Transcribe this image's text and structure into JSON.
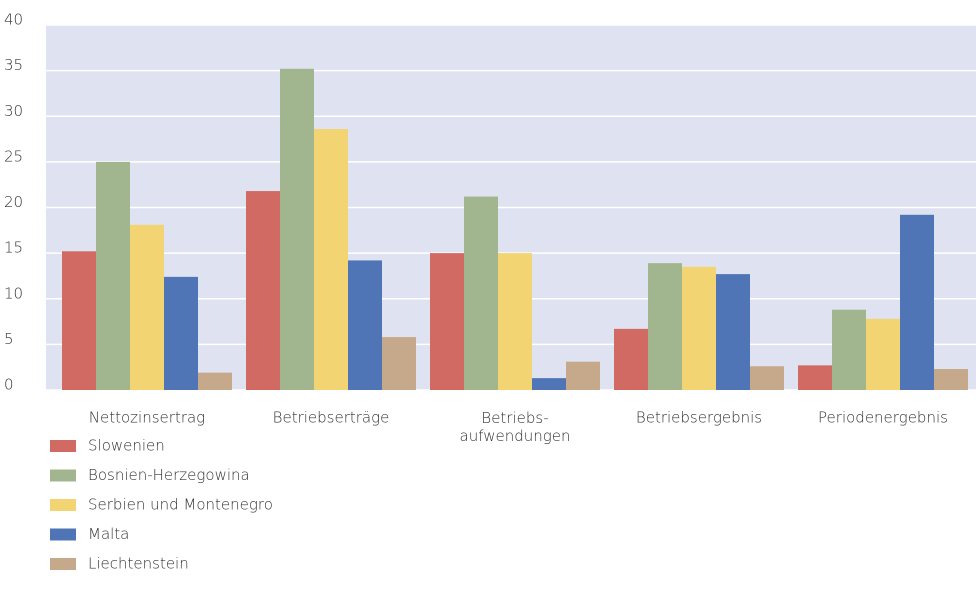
{
  "chart_data": {
    "type": "bar",
    "categories": [
      "Nettozinsertrag",
      "Betriebserträge",
      "Betriebs-\naufwendungen",
      "Betriebsergebnis",
      "Periodenergebnis"
    ],
    "series": [
      {
        "name": "Slowenien",
        "color": "#d06a63",
        "values": [
          15.2,
          21.8,
          15.0,
          6.7,
          2.7
        ]
      },
      {
        "name": "Bosnien-Herzegowina",
        "color": "#a1b68f",
        "values": [
          25.0,
          35.2,
          21.2,
          13.9,
          8.8
        ]
      },
      {
        "name": "Serbien und Montenegro",
        "color": "#f2d472",
        "values": [
          18.1,
          28.6,
          15.0,
          13.5,
          7.8
        ]
      },
      {
        "name": "Malta",
        "color": "#4f75b6",
        "values": [
          12.4,
          14.2,
          1.3,
          12.7,
          19.2
        ]
      },
      {
        "name": "Liechtenstein",
        "color": "#c6a98b",
        "values": [
          1.9,
          5.8,
          3.1,
          2.6,
          2.3
        ]
      }
    ],
    "ylim": [
      0,
      40
    ],
    "yticks": [
      0,
      5,
      10,
      15,
      20,
      25,
      30,
      35,
      40
    ],
    "grid": true,
    "legend": "bottom-left"
  }
}
